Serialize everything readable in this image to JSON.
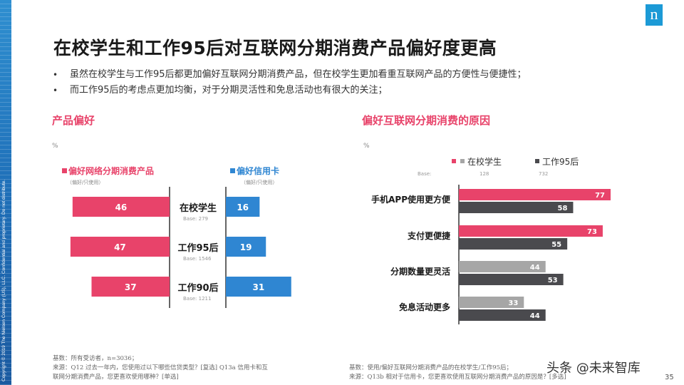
{
  "brand": {
    "logo_letter": "n",
    "logo_color": "#1c9ad6",
    "side_text": "Copyright © 2019 The Nielsen Company (US), LLC. Confidential and proprietary. Do not distribute."
  },
  "title": "在校学生和工作95后对互联网分期消费产品偏好度更高",
  "bullets": [
    "虽然在校学生与工作95后都更加偏好互联网分期消费产品，但在校学生更加看重互联网产品的方便性与便捷性；",
    "而工作95后的考虑点更加均衡，对于分期灵活性和免息活动也有很大的关注；"
  ],
  "left_section": {
    "heading": "产品偏好",
    "unit": "%",
    "footnote": [
      "基数：所有受访者，n=3036；",
      "来源：Q12 过去一年内，您使用过以下哪些信贷类型？[复选] Q13a 信用卡和互",
      "联网分期消费产品，您更喜欢使用哪种？[单选]"
    ]
  },
  "right_section": {
    "heading": "偏好互联网分期消费的原因",
    "unit": "%",
    "footnote": [
      "基数：使用/偏好互联网分期消费产品的在校学生/工作95后；",
      "来源：Q13b 相对于信用卡，您更喜欢使用互联网分期消费产品的原因是？[多选]"
    ]
  },
  "colors": {
    "pink": "#e8436a",
    "blue": "#2f86d2",
    "gray": "#a6a6a6",
    "dark": "#4a4a4e"
  },
  "chart_data": [
    {
      "type": "bar",
      "orientation": "horizontal-butterfly",
      "categories": [
        "在校学生",
        "工作95后",
        "工作90后"
      ],
      "bases": [
        "Base: 279",
        "Base: 1546",
        "Base: 1211"
      ],
      "series": [
        {
          "name": "偏好网络分期消费产品",
          "note": "（偏好/只使用）",
          "values": [
            46,
            47,
            37
          ],
          "color": "#e8436a",
          "direction": "left"
        },
        {
          "name": "偏好信用卡",
          "note": "（偏好/只使用）",
          "values": [
            16,
            19,
            31
          ],
          "color": "#2f86d2",
          "direction": "right"
        }
      ],
      "xlim": [
        0,
        50
      ],
      "grid": false,
      "legend": "top"
    },
    {
      "type": "bar",
      "orientation": "horizontal-grouped",
      "categories": [
        "手机APP使用更方便",
        "支付更便捷",
        "分期数量更灵活",
        "免息活动更多"
      ],
      "series": [
        {
          "name": "在校学生",
          "base": "128",
          "values": [
            77,
            73,
            44,
            33
          ],
          "colors": [
            "#e8436a",
            "#e8436a",
            "#a6a6a6",
            "#a6a6a6"
          ]
        },
        {
          "name": "工作95后",
          "base": "732",
          "values": [
            58,
            55,
            53,
            44
          ],
          "color": "#4a4a4e"
        }
      ],
      "base_label": "Base:",
      "xlim": [
        0,
        100
      ],
      "grid": false,
      "legend": "top"
    }
  ],
  "watermark": "头条 @未来智库",
  "page_number": "35"
}
